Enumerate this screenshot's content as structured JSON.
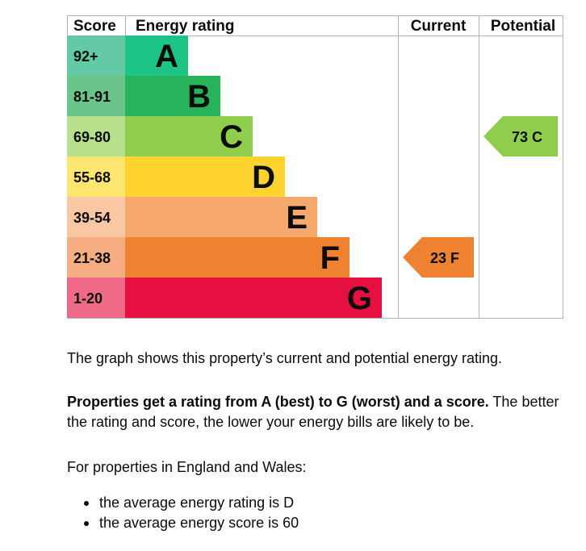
{
  "chart_data": {
    "type": "bar",
    "headers": {
      "score": "Score",
      "rating": "Energy rating",
      "current": "Current",
      "potential": "Potential"
    },
    "bands": [
      {
        "band": "A",
        "score_range": "92+",
        "color": "#1ec386"
      },
      {
        "band": "B",
        "score_range": "81-91",
        "color": "#26b35a"
      },
      {
        "band": "C",
        "score_range": "69-80",
        "color": "#8ece4c"
      },
      {
        "band": "D",
        "score_range": "55-68",
        "color": "#fed32e"
      },
      {
        "band": "E",
        "score_range": "39-54",
        "color": "#f7a96d"
      },
      {
        "band": "F",
        "score_range": "21-38",
        "color": "#ee8231"
      },
      {
        "band": "G",
        "score_range": "1-20",
        "color": "#e5103f"
      }
    ],
    "score_cell_colors": [
      "#64c9a5",
      "#6bc48a",
      "#b7e08c",
      "#fde570",
      "#fac7a4",
      "#f5ad81",
      "#ef6a86"
    ],
    "current": {
      "score": 23,
      "band": "F",
      "label": "23 F",
      "color": "#ee8231"
    },
    "potential": {
      "score": 73,
      "band": "C",
      "label": "73 C",
      "color": "#8ece4c"
    }
  },
  "text": {
    "intro": "The graph shows this property’s current and potential energy rating.",
    "scale_bold": "Properties get a rating from A (best) to G (worst) and a score.",
    "scale_rest": " The better the rating and score, the lower your energy bills are likely to be.",
    "regional_intro": "For properties in England and Wales:",
    "averages": [
      "the average energy rating is D",
      "the average energy score is 60"
    ]
  }
}
